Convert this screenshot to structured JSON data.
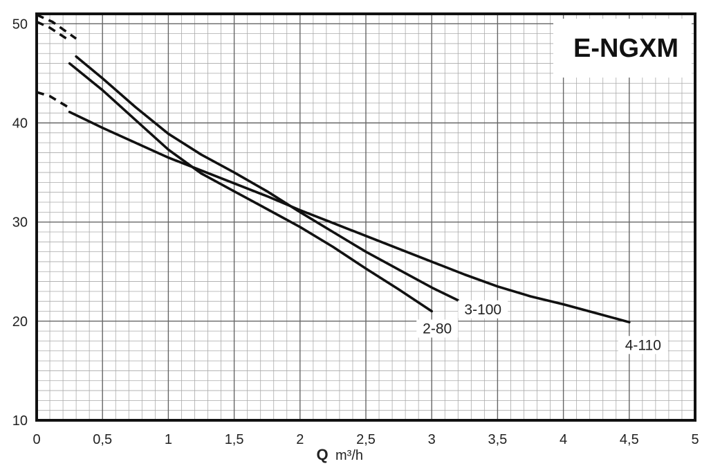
{
  "chart_data": {
    "type": "line",
    "title": "E-NGXM",
    "xlabel_symbol": "Q",
    "xlabel_unit": "m³/h",
    "xlim": [
      0,
      5
    ],
    "ylim": [
      10,
      51
    ],
    "x_ticks": [
      0,
      0.5,
      1,
      1.5,
      2,
      2.5,
      3,
      3.5,
      4,
      4.5,
      5
    ],
    "x_tick_labels": [
      "0",
      "0,5",
      "1",
      "1,5",
      "2",
      "2,5",
      "3",
      "3,5",
      "4",
      "4,5",
      "5"
    ],
    "y_ticks": [
      10,
      20,
      30,
      40,
      50
    ],
    "y_tick_labels": [
      "10",
      "20",
      "30",
      "40",
      "50"
    ],
    "grid": true,
    "series": [
      {
        "name": "2-80",
        "dashed": {
          "x": [
            0,
            0.1,
            0.25
          ],
          "y": [
            50.2,
            49.6,
            48.3
          ]
        },
        "solid": {
          "x": [
            0.25,
            0.5,
            0.75,
            1.0,
            1.25,
            1.5,
            1.75,
            2.0,
            2.25,
            2.5,
            2.75,
            3.0
          ],
          "y": [
            46.0,
            43.3,
            40.3,
            37.3,
            34.9,
            33.1,
            31.3,
            29.5,
            27.5,
            25.3,
            23.2,
            21.0
          ]
        }
      },
      {
        "name": "3-100",
        "dashed": {
          "x": [
            0,
            0.12,
            0.3
          ],
          "y": [
            50.9,
            50.2,
            48.5
          ]
        },
        "solid": {
          "x": [
            0.3,
            0.5,
            0.75,
            1.0,
            1.25,
            1.5,
            1.75,
            2.0,
            2.25,
            2.5,
            2.75,
            3.0,
            3.2
          ],
          "y": [
            46.7,
            44.5,
            41.6,
            38.9,
            36.8,
            35.0,
            33.1,
            31.0,
            29.0,
            27.0,
            25.2,
            23.4,
            22.1
          ]
        }
      },
      {
        "name": "4-110",
        "dashed": {
          "x": [
            0,
            0.1,
            0.25
          ],
          "y": [
            43.1,
            42.7,
            41.5
          ]
        },
        "solid": {
          "x": [
            0.25,
            0.5,
            0.75,
            1.0,
            1.25,
            1.5,
            1.75,
            2.0,
            2.25,
            2.5,
            2.75,
            3.0,
            3.25,
            3.5,
            3.75,
            4.0,
            4.25,
            4.5
          ],
          "y": [
            41.1,
            39.5,
            38.0,
            36.5,
            35.2,
            33.9,
            32.6,
            31.2,
            29.9,
            28.6,
            27.3,
            26.0,
            24.7,
            23.5,
            22.5,
            21.7,
            20.8,
            19.9
          ]
        }
      }
    ]
  }
}
